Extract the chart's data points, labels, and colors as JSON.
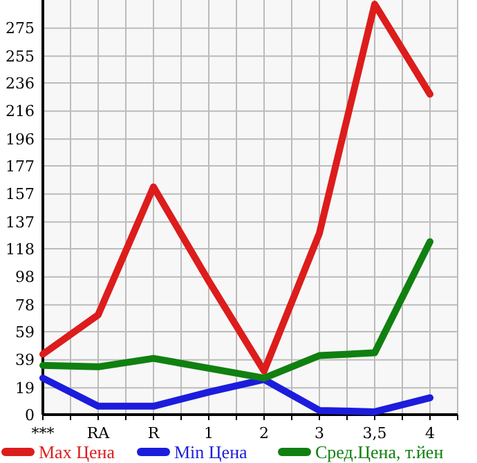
{
  "chart_data": {
    "type": "line",
    "categories": [
      "***",
      "RA",
      "R",
      "1",
      "2",
      "3",
      "3,5",
      "4"
    ],
    "series": [
      {
        "name": "Max Цена",
        "color": "#dd1c1c",
        "values": [
          43,
          71,
          162,
          95,
          31,
          129,
          292,
          228
        ]
      },
      {
        "name": "Min Цена",
        "color": "#1c1cdd",
        "values": [
          26,
          6,
          6,
          16,
          25,
          3,
          2,
          12
        ]
      },
      {
        "name": "Сред.Цена, т.йен",
        "color": "#108010",
        "values": [
          35,
          34,
          40,
          33,
          26,
          42,
          44,
          123
        ]
      }
    ],
    "ylim": [
      0,
      295
    ],
    "yticks": [
      0,
      19,
      39,
      59,
      78,
      98,
      118,
      137,
      157,
      177,
      196,
      216,
      236,
      255,
      275
    ],
    "grid": true,
    "legend": "bottom",
    "marker": "none",
    "line_style": "solid"
  }
}
